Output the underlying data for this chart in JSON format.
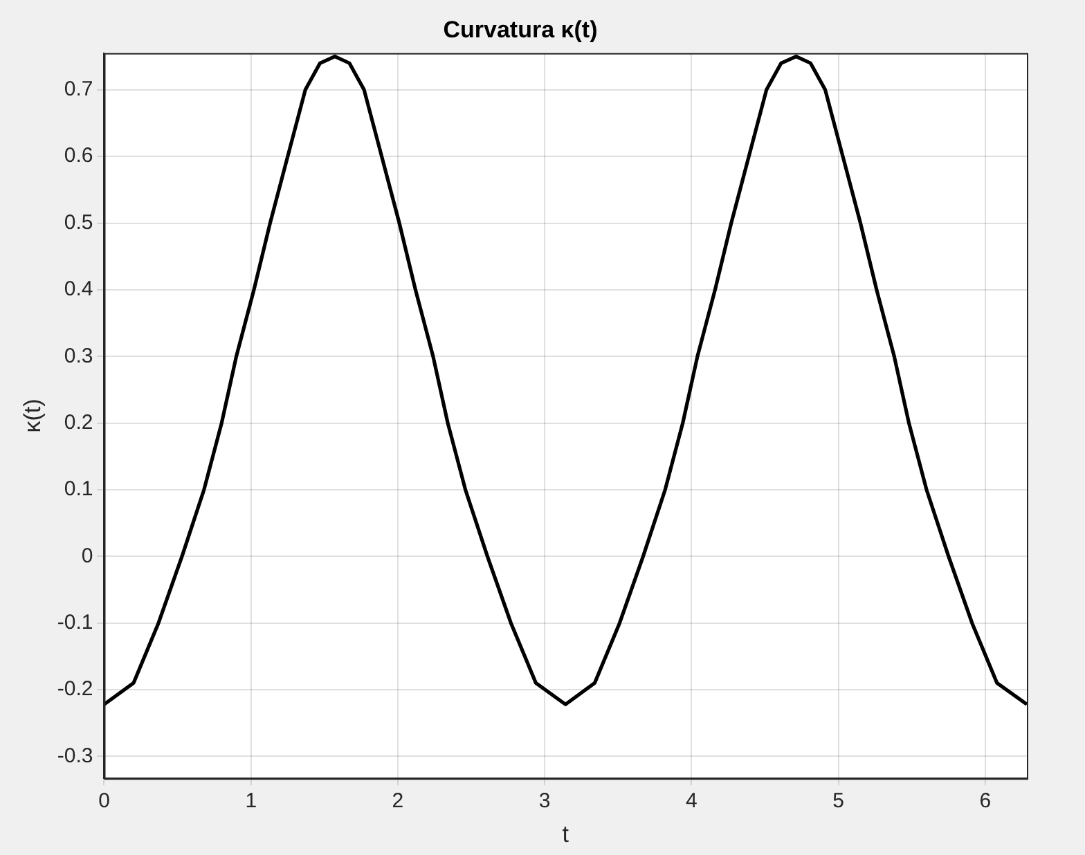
{
  "chart_data": {
    "type": "line",
    "title": "Curvatura κ(t)",
    "xlabel": "t",
    "ylabel": "κ(t)",
    "xlim": [
      0,
      6.2832
    ],
    "xticks": [
      0,
      1,
      2,
      3,
      4,
      5,
      6
    ],
    "ylim": [
      -0.333,
      0.755
    ],
    "yticks": [
      -0.3,
      -0.2,
      -0.1,
      0,
      0.1,
      0.2,
      0.3,
      0.4,
      0.5,
      0.6,
      0.7
    ],
    "grid": true,
    "marker": "none",
    "line_style": "solid",
    "series": [
      {
        "color": "#000000",
        "x": [
          0,
          0.2,
          0.37,
          0.53,
          0.68,
          0.8,
          0.9,
          1.02,
          1.13,
          1.25,
          1.37,
          1.47,
          1.571,
          1.67,
          1.77,
          1.89,
          2.01,
          2.12,
          2.24,
          2.34,
          2.46,
          2.61,
          2.77,
          2.94,
          3.1416,
          3.34,
          3.51,
          3.67,
          3.82,
          3.94,
          4.04,
          4.16,
          4.27,
          4.39,
          4.51,
          4.61,
          4.712,
          4.81,
          4.91,
          5.03,
          5.15,
          5.26,
          5.38,
          5.48,
          5.6,
          5.75,
          5.91,
          6.08,
          6.2832
        ],
        "values": [
          -0.222,
          -0.19,
          -0.1,
          0,
          0.1,
          0.2,
          0.3,
          0.4,
          0.5,
          0.6,
          0.7,
          0.74,
          0.75,
          0.74,
          0.7,
          0.6,
          0.5,
          0.4,
          0.3,
          0.2,
          0.1,
          0,
          -0.1,
          -0.19,
          -0.222,
          -0.19,
          -0.1,
          0,
          0.1,
          0.2,
          0.3,
          0.4,
          0.5,
          0.6,
          0.7,
          0.74,
          0.75,
          0.74,
          0.7,
          0.6,
          0.5,
          0.4,
          0.3,
          0.2,
          0.1,
          0,
          -0.1,
          -0.19,
          -0.222
        ]
      }
    ]
  }
}
